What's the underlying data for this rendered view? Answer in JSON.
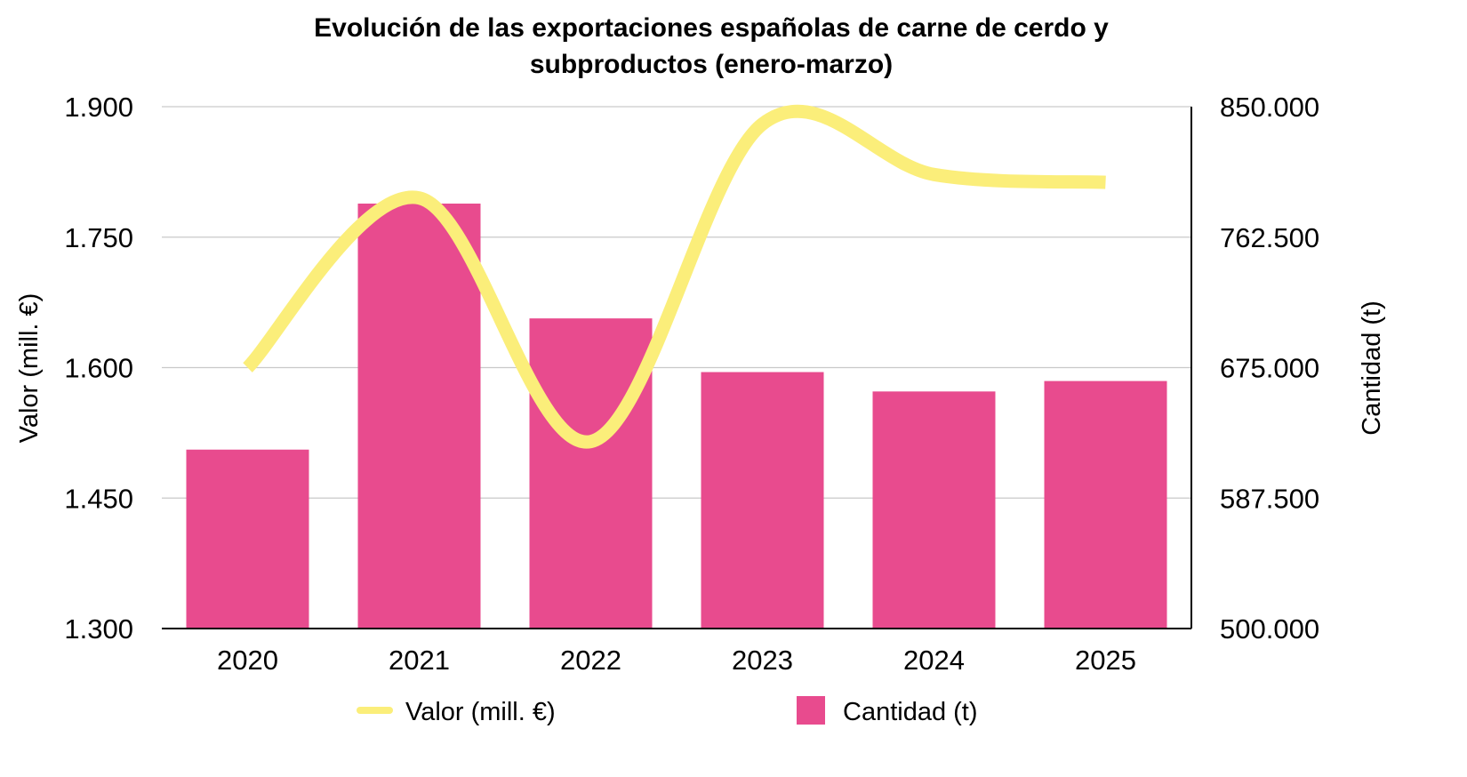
{
  "chart_data": {
    "type": "bar",
    "title_lines": [
      "Evolución de las exportaciones españolas de carne de cerdo y",
      "subproductos (enero-marzo)"
    ],
    "categories": [
      "2020",
      "2021",
      "2022",
      "2023",
      "2024",
      "2025"
    ],
    "series": [
      {
        "name": "Cantidad (t)",
        "type": "bar",
        "axis": "right",
        "color": "#E84B8E",
        "values": [
          620000,
          785000,
          708000,
          672000,
          659000,
          666000
        ]
      },
      {
        "name": "Valor (mill. €)",
        "type": "line",
        "axis": "left",
        "color": "#FBEE7A",
        "smooth": true,
        "values": [
          1600,
          1795,
          1515,
          1880,
          1822,
          1813
        ]
      }
    ],
    "y_left": {
      "label": "Valor (mill. €)",
      "range": [
        1300,
        1900
      ],
      "ticks": [
        1300,
        1450,
        1600,
        1750,
        1900
      ],
      "tick_labels": [
        "1.300",
        "1.450",
        "1.600",
        "1.750",
        "1.900"
      ]
    },
    "y_right": {
      "label": "Cantidad (t)",
      "range": [
        500000,
        850000
      ],
      "ticks": [
        500000,
        587500,
        675000,
        762500,
        850000
      ],
      "tick_labels": [
        "500.000",
        "587.500",
        "675.000",
        "762.500",
        "850.000"
      ]
    },
    "grid": true,
    "legend_position": "bottom",
    "legend": [
      {
        "label": "Valor (mill. €)",
        "kind": "line",
        "color": "#FBEE7A"
      },
      {
        "label": "Cantidad (t)",
        "kind": "box",
        "color": "#E84B8E"
      }
    ],
    "colors": {
      "grid": "#C9C9C9",
      "axis": "#000000",
      "text": "#000000"
    }
  }
}
